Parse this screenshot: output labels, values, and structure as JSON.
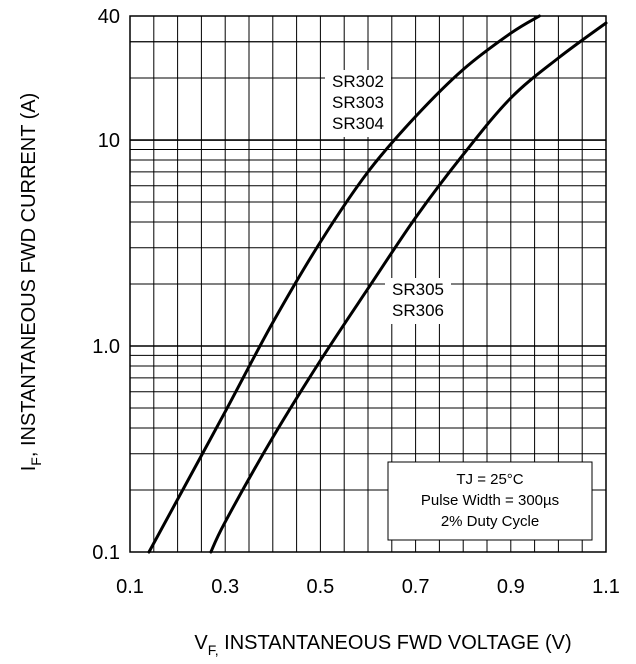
{
  "chart_data": {
    "type": "line",
    "x_axis": {
      "scale": "linear",
      "range": [
        0.1,
        1.1
      ],
      "ticks": [
        0.1,
        0.3,
        0.5,
        0.7,
        0.9,
        1.1
      ],
      "tick_labels": [
        "0.1",
        "0.3",
        "0.5",
        "0.7",
        "0.9",
        "1.1"
      ],
      "label_main": "V",
      "label_sub": "F,",
      "label_rest": " INSTANTANEOUS FWD VOLTAGE (V)"
    },
    "y_axis": {
      "scale": "log",
      "range": [
        0.1,
        40
      ],
      "ticks": [
        0.1,
        1.0,
        10,
        40
      ],
      "tick_labels": [
        "0.1",
        "1.0",
        "10",
        "40"
      ],
      "label_main": "I",
      "label_sub": "F",
      "label_rest": ", INSTANTANEOUS FWD CURRENT (A)"
    },
    "grid": true,
    "series": [
      {
        "name": "SR302 SR303 SR304",
        "label_lines": [
          "SR302",
          "SR303",
          "SR304"
        ],
        "x": [
          0.14,
          0.2,
          0.3,
          0.4,
          0.5,
          0.6,
          0.7,
          0.8,
          0.9,
          0.96
        ],
        "y": [
          0.1,
          0.18,
          0.48,
          1.3,
          3.2,
          7.0,
          13.0,
          22.0,
          33.0,
          40.0
        ]
      },
      {
        "name": "SR305 SR306",
        "label_lines": [
          "SR305",
          "SR306"
        ],
        "x": [
          0.27,
          0.3,
          0.4,
          0.5,
          0.6,
          0.7,
          0.8,
          0.9,
          1.0,
          1.1
        ],
        "y": [
          0.1,
          0.14,
          0.36,
          0.85,
          1.9,
          4.2,
          8.5,
          16.0,
          25.0,
          37.0
        ]
      }
    ],
    "annotation": [
      "TJ = 25°C",
      "Pulse Width = 300µs",
      "2% Duty Cycle"
    ]
  }
}
